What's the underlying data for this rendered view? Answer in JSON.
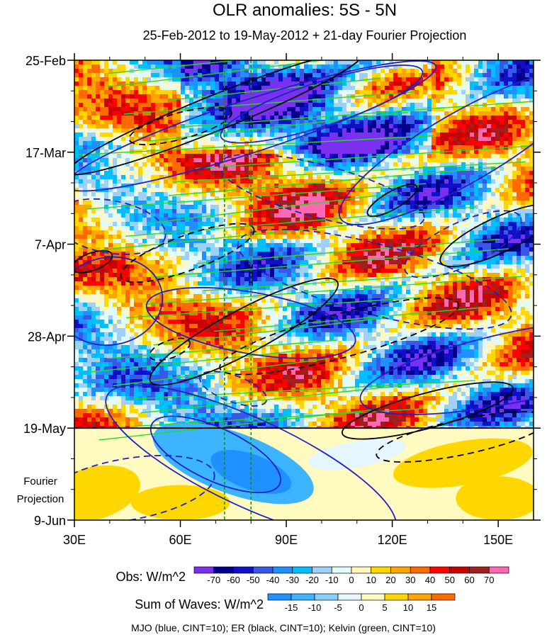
{
  "chart_data": {
    "type": "heatmap",
    "title": "OLR anomalies: 5S - 5N",
    "subtitle": "25-Feb-2012 to 19-May-2012 + 21-day Fourier Projection",
    "x_axis": {
      "range": [
        30,
        160
      ],
      "ticks": [
        30,
        60,
        90,
        120,
        150
      ],
      "tick_labels": [
        "30E",
        "60E",
        "90E",
        "120E",
        "150E"
      ]
    },
    "y_axis": {
      "ticks": [
        0,
        21,
        42,
        63,
        84,
        105
      ],
      "tick_labels": [
        "25-Feb",
        "17-Mar",
        "7-Apr",
        "28-Apr",
        "19-May",
        "9-Jun"
      ],
      "range_days": [
        0,
        105
      ],
      "reversed": true
    },
    "forecast_start_day": 84,
    "forecast_label_line1": "Fourier",
    "forecast_label_line2": "Projection",
    "reference_lines_lon": [
      72.5,
      80
    ],
    "obs_colorbar": {
      "label": "Obs: W/m^2",
      "levels": [
        -70,
        -60,
        -50,
        -40,
        -30,
        -20,
        -10,
        0,
        10,
        20,
        30,
        40,
        50,
        60,
        70
      ],
      "colors": [
        "#7b2ff0",
        "#00008b",
        "#1010c8",
        "#3a58e6",
        "#1e90ff",
        "#00bfff",
        "#9fd0f7",
        "#e0fbfb",
        "#fff6c0",
        "#ffd700",
        "#ffa500",
        "#ff6a00",
        "#ff0000",
        "#c80000",
        "#a02020",
        "#ff69b4"
      ]
    },
    "waves_colorbar": {
      "label": "Sum of Waves: W/m^2",
      "levels": [
        -15,
        -10,
        -5,
        0,
        5,
        10,
        15
      ],
      "colors": [
        "#1e90ff",
        "#3cb4ff",
        "#87cefa",
        "#e6f6ff",
        "#fffac0",
        "#ffd700",
        "#ffa500",
        "#ff6a00"
      ]
    },
    "footnote": "MJO (blue, CINT=10); ER (black, CINT=10); Kelvin (green, CINT=10)",
    "contour_colors": {
      "mjo": "#2020c8",
      "er": "#000000",
      "kelvin": "#22dd22"
    }
  }
}
